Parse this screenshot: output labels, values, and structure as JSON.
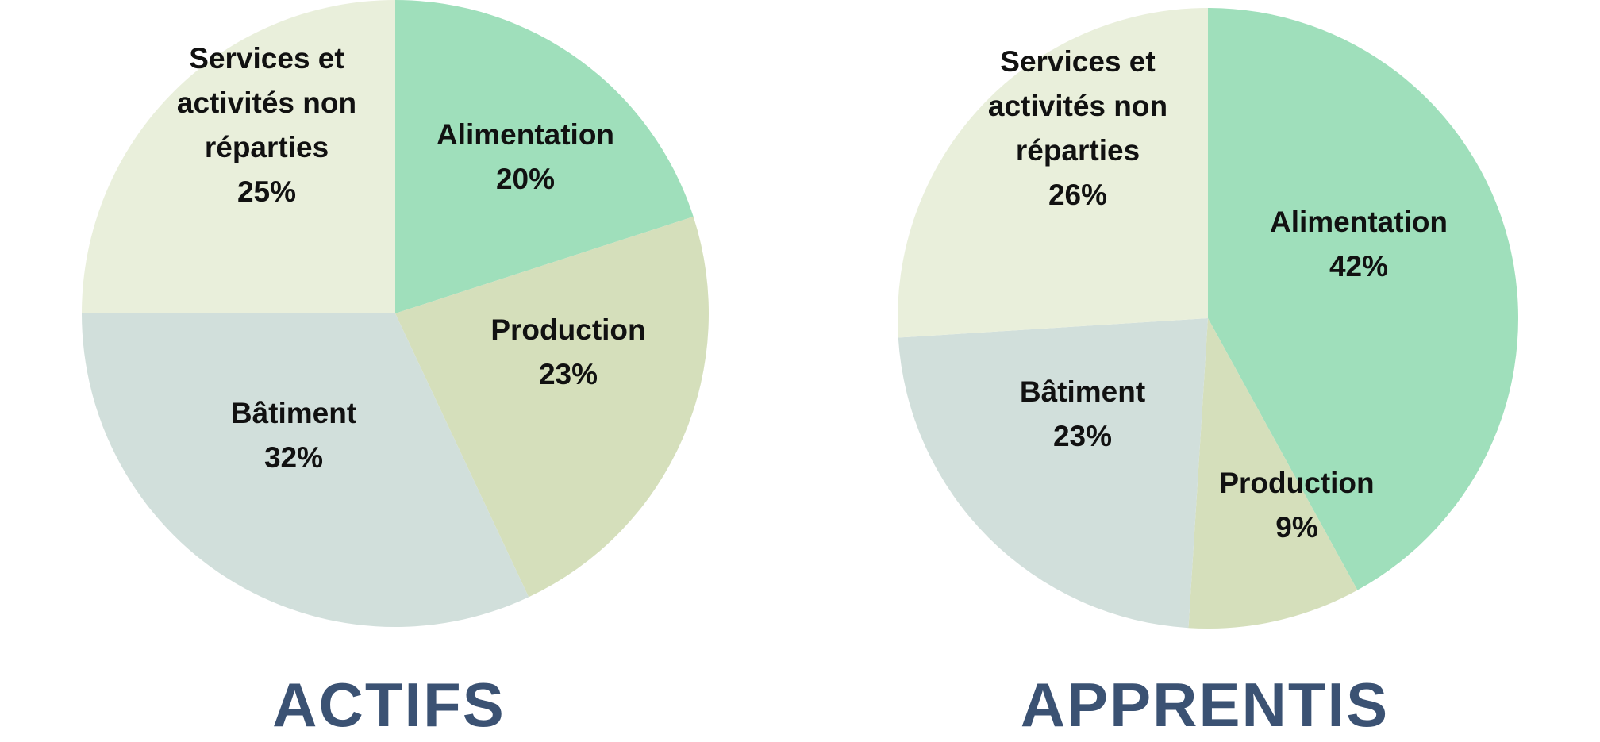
{
  "chart_data": [
    {
      "type": "pie",
      "title": "ACTIFS",
      "slices": [
        {
          "label": "Alimentation",
          "value": 20,
          "value_label": "20%",
          "color": "#9fdfbb"
        },
        {
          "label": "Production",
          "value": 23,
          "value_label": "23%",
          "color": "#d5dfbb"
        },
        {
          "label": "Bâtiment",
          "value": 32,
          "value_label": "32%",
          "color": "#d1dfdb"
        },
        {
          "label": "Services et activités non réparties",
          "value": 25,
          "value_label": "25%",
          "color": "#e9efdb"
        }
      ]
    },
    {
      "type": "pie",
      "title": "APPRENTIS",
      "slices": [
        {
          "label": "Alimentation",
          "value": 42,
          "value_label": "42%",
          "color": "#9fdfbb"
        },
        {
          "label": "Production",
          "value": 9,
          "value_label": "9%",
          "color": "#d5dfbb"
        },
        {
          "label": "Bâtiment",
          "value": 23,
          "value_label": "23%",
          "color": "#d1dfdb"
        },
        {
          "label": "Services et activités non réparties",
          "value": 26,
          "value_label": "26%",
          "color": "#e9efdb"
        }
      ]
    }
  ],
  "label_lines": {
    "Alimentation": [
      "Alimentation"
    ],
    "Production": [
      "Production"
    ],
    "Bâtiment": [
      "Bâtiment"
    ],
    "Services et activités non réparties": [
      "Services et",
      "activités non",
      "réparties"
    ]
  }
}
